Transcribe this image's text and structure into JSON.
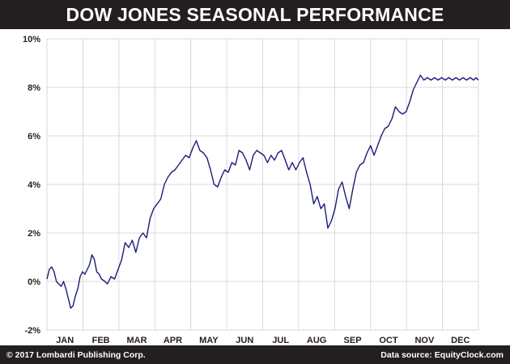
{
  "header": {
    "title": "DOW JONES SEASONAL PERFORMANCE"
  },
  "footer": {
    "copyright": "© 2017 Lombardi Publishing Corp.",
    "source": "Data source: EquityClock.com"
  },
  "colors": {
    "bar_background": "#231f20",
    "line": "#1b1b7a",
    "grid": "#d9d9d9",
    "axis_text": "#231f20"
  },
  "chart_data": {
    "type": "line",
    "title": "DOW JONES SEASONAL PERFORMANCE",
    "xlabel": "",
    "ylabel": "",
    "x_unit": "day of year",
    "xlim": [
      1,
      365
    ],
    "ylim": [
      -2,
      10
    ],
    "yticks": [
      -2,
      0,
      2,
      4,
      6,
      8,
      10
    ],
    "ytick_labels": [
      "-2%",
      "0%",
      "2%",
      "4%",
      "6%",
      "8%",
      "10%"
    ],
    "months": [
      "JAN",
      "FEB",
      "MAR",
      "APR",
      "MAY",
      "JUN",
      "JUL",
      "AUG",
      "SEP",
      "OCT",
      "NOV",
      "DEC"
    ],
    "grid": true,
    "legend": "none",
    "series": [
      {
        "x": [
          1,
          3,
          5,
          7,
          9,
          11,
          13,
          15,
          17,
          19,
          21,
          23,
          25,
          27,
          29,
          31,
          33,
          35,
          37,
          39,
          41,
          43,
          45,
          47,
          50,
          52,
          55,
          58,
          61,
          64,
          67,
          70,
          73,
          76,
          79,
          82,
          85,
          88,
          91,
          94,
          97,
          100,
          103,
          106,
          109,
          112,
          115,
          118,
          121,
          124,
          127,
          130,
          133,
          136,
          139,
          142,
          145,
          148,
          151,
          154,
          157,
          160,
          163,
          166,
          169,
          172,
          175,
          178,
          181,
          184,
          187,
          190,
          193,
          196,
          199,
          202,
          205,
          208,
          211,
          214,
          217,
          220,
          223,
          226,
          229,
          232,
          235,
          238,
          241,
          244,
          247,
          250,
          253,
          256,
          259,
          262,
          265,
          268,
          271,
          274,
          277,
          280,
          283,
          286,
          289,
          292,
          295,
          298,
          301,
          304,
          307,
          310,
          313,
          316,
          319,
          322,
          325,
          328,
          331,
          334,
          337,
          340,
          343,
          346,
          349,
          352,
          355,
          358,
          361,
          363,
          365
        ],
        "values": [
          0.1,
          0.5,
          0.6,
          0.4,
          0.0,
          -0.1,
          -0.2,
          0.0,
          -0.3,
          -0.7,
          -1.1,
          -1.0,
          -0.6,
          -0.3,
          0.2,
          0.4,
          0.3,
          0.5,
          0.7,
          1.1,
          0.9,
          0.4,
          0.3,
          0.1,
          0.0,
          -0.1,
          0.2,
          0.1,
          0.5,
          0.9,
          1.6,
          1.4,
          1.7,
          1.2,
          1.8,
          2.0,
          1.8,
          2.6,
          3.0,
          3.2,
          3.4,
          4.0,
          4.3,
          4.5,
          4.6,
          4.8,
          5.0,
          5.2,
          5.1,
          5.5,
          5.8,
          5.4,
          5.3,
          5.1,
          4.6,
          4.0,
          3.9,
          4.3,
          4.6,
          4.5,
          4.9,
          4.8,
          5.4,
          5.3,
          5.0,
          4.6,
          5.2,
          5.4,
          5.3,
          5.2,
          4.9,
          5.2,
          5.0,
          5.3,
          5.4,
          5.0,
          4.6,
          4.9,
          4.6,
          4.9,
          5.1,
          4.5,
          4.0,
          3.2,
          3.5,
          3.0,
          3.2,
          2.2,
          2.5,
          3.0,
          3.8,
          4.1,
          3.5,
          3.0,
          3.8,
          4.5,
          4.8,
          4.9,
          5.3,
          5.6,
          5.2,
          5.6,
          6.0,
          6.3,
          6.4,
          6.7,
          7.2,
          7.0,
          6.9,
          7.0,
          7.4,
          7.9,
          8.2,
          8.5,
          8.3,
          8.4,
          8.3,
          8.4,
          8.3,
          8.4,
          8.3,
          8.4,
          8.3,
          8.4,
          8.3,
          8.4,
          8.3,
          8.4,
          8.3,
          8.4,
          8.3
        ]
      }
    ]
  }
}
